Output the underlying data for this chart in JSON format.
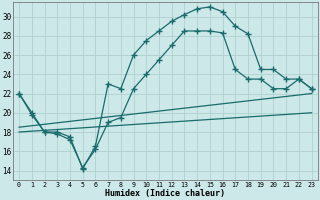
{
  "xlabel": "Humidex (Indice chaleur)",
  "bg_color": "#cce8e8",
  "line_color": "#1a6b6b",
  "grid_color": "#b0d0d0",
  "xlim": [
    -0.5,
    23.5
  ],
  "ylim": [
    13,
    31.5
  ],
  "yticks": [
    14,
    16,
    18,
    20,
    22,
    24,
    26,
    28,
    30
  ],
  "xticks": [
    0,
    1,
    2,
    3,
    4,
    5,
    6,
    7,
    8,
    9,
    10,
    11,
    12,
    13,
    14,
    15,
    16,
    17,
    18,
    19,
    20,
    21,
    22,
    23
  ],
  "curve1_x": [
    0,
    1,
    2,
    3,
    4,
    5,
    6,
    7,
    8,
    9,
    10,
    11,
    12,
    13,
    14,
    15,
    16,
    17,
    18,
    19,
    20,
    21,
    22,
    23
  ],
  "curve1_y": [
    22,
    20,
    18,
    18,
    17.5,
    14.2,
    16.5,
    23,
    22.5,
    26,
    27.5,
    28.5,
    29.5,
    30.2,
    30.8,
    31.0,
    30.5,
    29.0,
    28.2,
    24.5,
    24.5,
    23.5,
    23.5,
    22.5
  ],
  "curve2_x": [
    0,
    1,
    2,
    3,
    4,
    5,
    6,
    7,
    8,
    9,
    10,
    11,
    12,
    13,
    14,
    15,
    16,
    17,
    18,
    19,
    20,
    21,
    22,
    23
  ],
  "curve2_y": [
    22,
    19.8,
    18,
    17.8,
    17.2,
    14.3,
    16.2,
    19.0,
    19.5,
    22.5,
    24,
    25.5,
    27,
    28.5,
    28.5,
    28.5,
    28.3,
    24.5,
    23.5,
    23.5,
    22.5,
    22.5,
    23.5,
    22.5
  ],
  "line1_x": [
    0,
    23
  ],
  "line1_y": [
    18,
    20
  ],
  "line2_x": [
    0,
    23
  ],
  "line2_y": [
    18.5,
    22
  ]
}
